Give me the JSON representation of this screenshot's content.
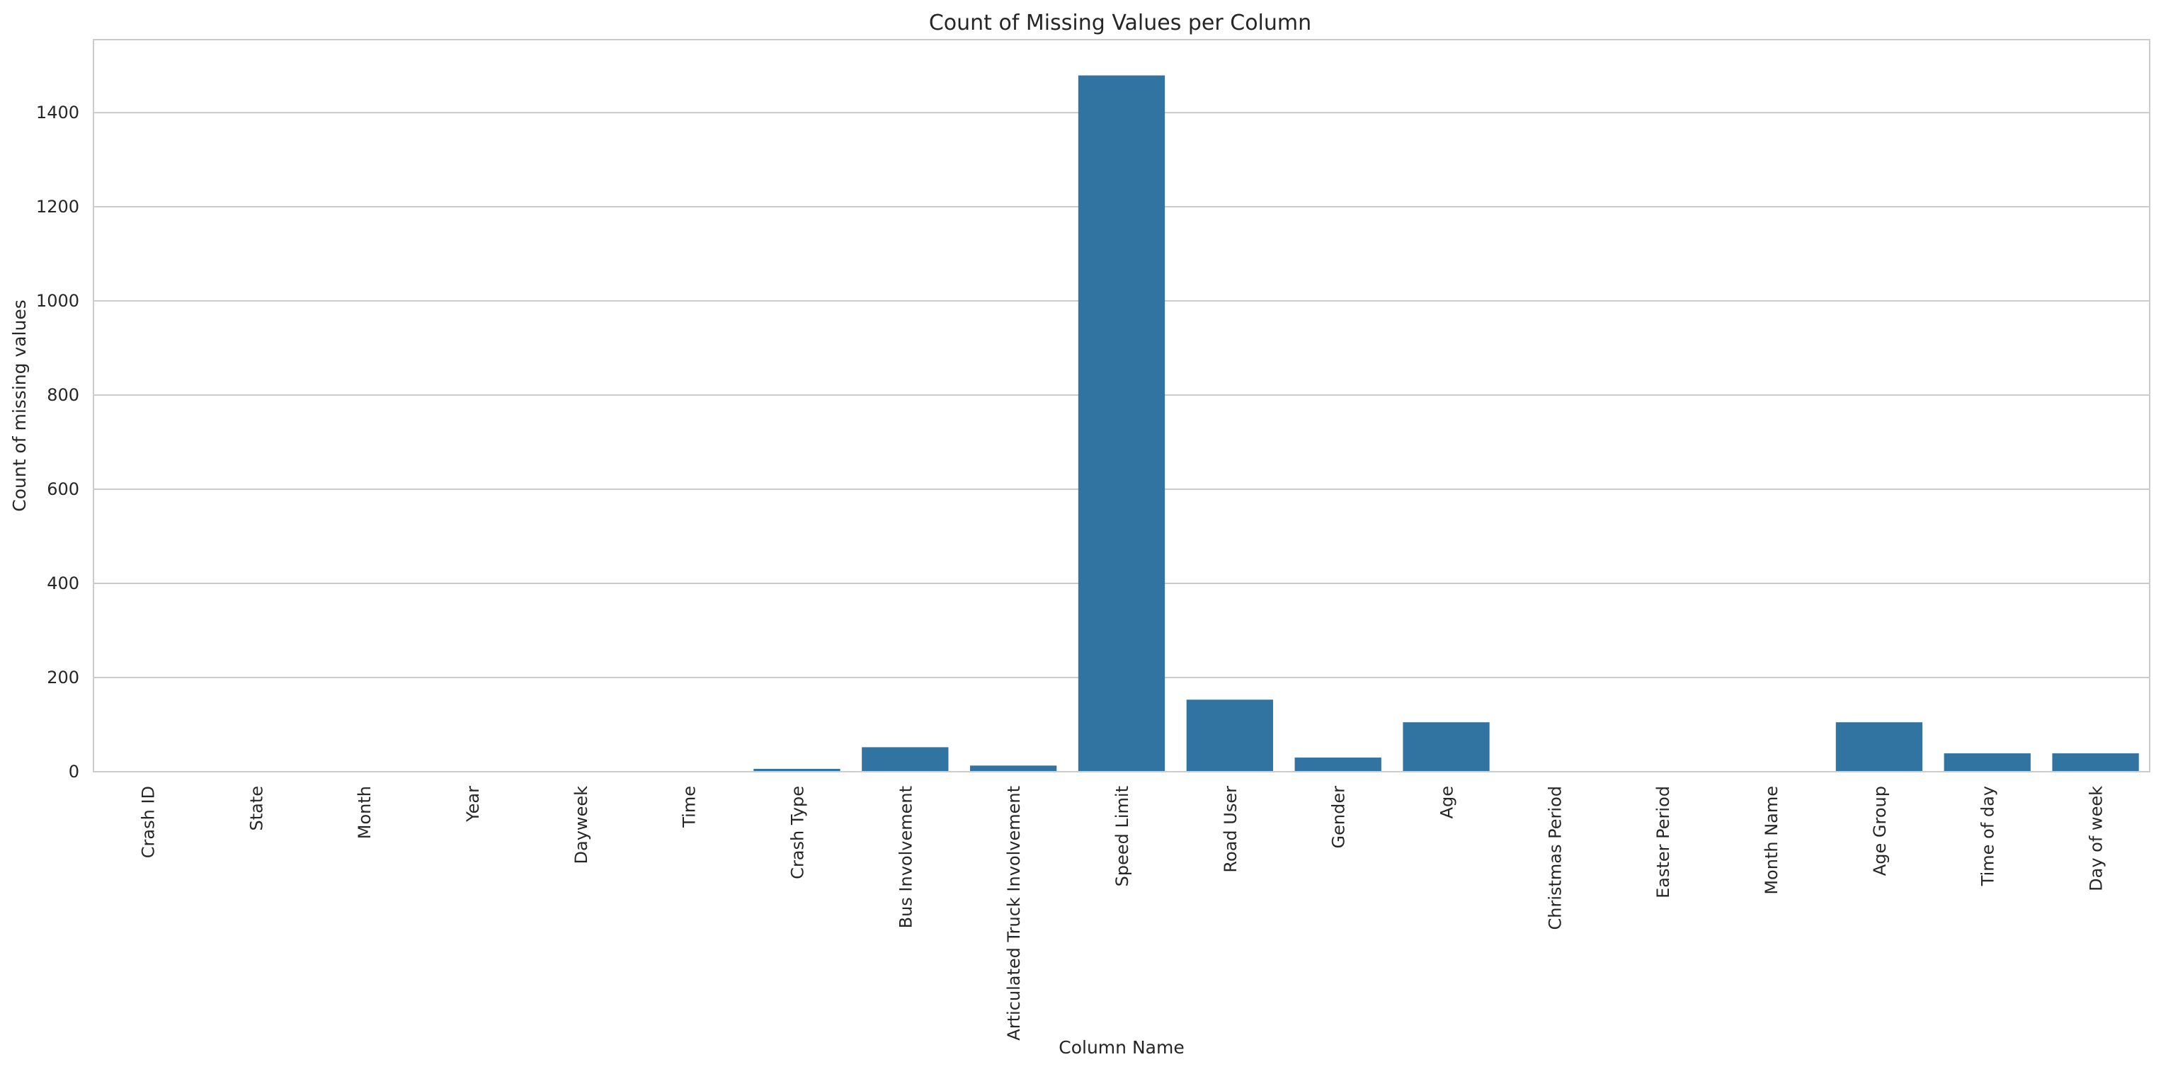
{
  "chart_data": {
    "type": "bar",
    "title": "Count of Missing Values per Column",
    "xlabel": "Column Name",
    "ylabel": "Count of missing values",
    "categories": [
      "Crash ID",
      "State",
      "Month",
      "Year",
      "Dayweek",
      "Time",
      "Crash Type",
      "Bus Involvement",
      "Articulated Truck Involvement",
      "Speed Limit",
      "Road User",
      "Gender",
      "Age",
      "Christmas Period",
      "Easter Period",
      "Month Name",
      "Age Group",
      "Time of day",
      "Day of week"
    ],
    "values": [
      0,
      0,
      0,
      0,
      0,
      0,
      6,
      52,
      13,
      1479,
      153,
      30,
      105,
      0,
      0,
      0,
      105,
      39,
      39
    ],
    "ylim": [
      0,
      1555
    ],
    "yticks": [
      "0",
      "200",
      "400",
      "600",
      "800",
      "1000",
      "1200",
      "1400"
    ],
    "grid": true,
    "grid_axis": "y",
    "bar_color": "#3274a1",
    "grid_color": "#cccccc",
    "spine_color": "#cccccc"
  }
}
